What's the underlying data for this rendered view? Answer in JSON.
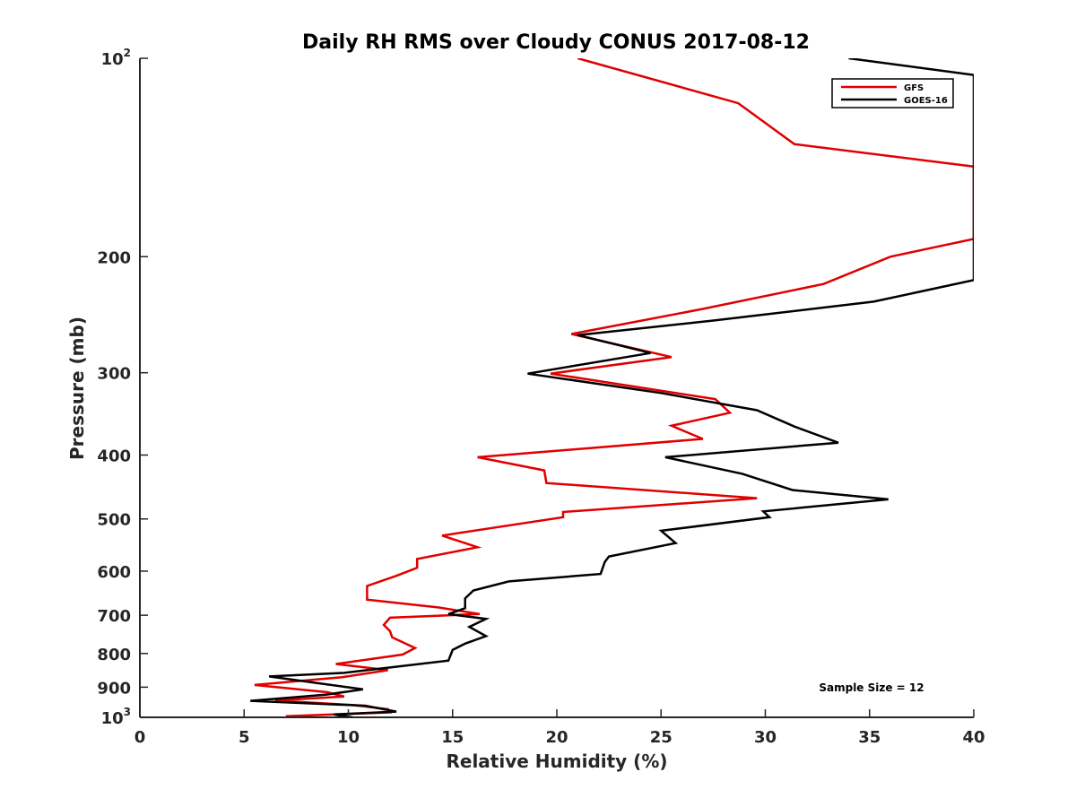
{
  "chart_data": {
    "type": "line",
    "title": "Daily RH RMS over Cloudy CONUS 2017-08-12",
    "xlabel": "Relative Humidity (%)",
    "ylabel": "Pressure (mb)",
    "xlim": [
      0,
      40
    ],
    "ylim": [
      100,
      1000
    ],
    "y_scale": "log",
    "y_reversed": true,
    "grid": false,
    "legend_position": "top-right",
    "x_ticks": [
      "0",
      "5",
      "10",
      "15",
      "20",
      "25",
      "30",
      "35",
      "40"
    ],
    "y_ticks": [
      {
        "value": 100,
        "base": "10",
        "exp": "2"
      },
      {
        "value": 200,
        "label": "200"
      },
      {
        "value": 300,
        "label": "300"
      },
      {
        "value": 400,
        "label": "400"
      },
      {
        "value": 500,
        "label": "500"
      },
      {
        "value": 600,
        "label": "600"
      },
      {
        "value": 700,
        "label": "700"
      },
      {
        "value": 800,
        "label": "800"
      },
      {
        "value": 900,
        "label": "900"
      },
      {
        "value": 1000,
        "base": "10",
        "exp": "3"
      }
    ],
    "annotation": "Sample Size = 12",
    "series": [
      {
        "name": "GFS",
        "color": "#e00000",
        "points": [
          [
            21.0,
            100
          ],
          [
            28.7,
            117
          ],
          [
            31.4,
            135
          ],
          [
            40.0,
            146
          ],
          [
            40.0,
            188
          ],
          [
            36.0,
            200
          ],
          [
            32.8,
            220
          ],
          [
            27.0,
            240
          ],
          [
            20.7,
            262
          ],
          [
            25.5,
            284
          ],
          [
            19.7,
            301
          ],
          [
            27.6,
            329
          ],
          [
            28.3,
            345
          ],
          [
            25.5,
            361
          ],
          [
            27.0,
            378
          ],
          [
            16.2,
            403
          ],
          [
            19.4,
            422
          ],
          [
            19.5,
            441
          ],
          [
            29.6,
            465
          ],
          [
            20.3,
            488
          ],
          [
            20.3,
            497
          ],
          [
            14.5,
            530
          ],
          [
            16.2,
            552
          ],
          [
            13.3,
            575
          ],
          [
            13.3,
            593
          ],
          [
            12.3,
            610
          ],
          [
            10.9,
            632
          ],
          [
            10.9,
            663
          ],
          [
            14.3,
            681
          ],
          [
            16.3,
            697
          ],
          [
            12.0,
            706
          ],
          [
            11.7,
            724
          ],
          [
            12.0,
            740
          ],
          [
            12.1,
            756
          ],
          [
            13.2,
            785
          ],
          [
            12.6,
            803
          ],
          [
            9.4,
            830
          ],
          [
            11.9,
            848
          ],
          [
            9.7,
            869
          ],
          [
            5.5,
            893
          ],
          [
            9.0,
            916
          ],
          [
            9.8,
            930
          ],
          [
            6.5,
            943
          ],
          [
            10.2,
            958
          ],
          [
            11.9,
            972
          ],
          [
            12.0,
            983
          ],
          [
            7.0,
            996
          ]
        ]
      },
      {
        "name": "GOES-16",
        "color": "#000000",
        "points": [
          [
            34.0,
            100
          ],
          [
            40.0,
            106
          ],
          [
            40.0,
            217
          ],
          [
            38.0,
            224
          ],
          [
            35.2,
            234
          ],
          [
            27.5,
            250
          ],
          [
            21.0,
            263
          ],
          [
            24.5,
            280
          ],
          [
            18.6,
            301
          ],
          [
            25.0,
            322
          ],
          [
            29.6,
            342
          ],
          [
            31.4,
            362
          ],
          [
            33.5,
            383
          ],
          [
            25.2,
            403
          ],
          [
            28.9,
            427
          ],
          [
            31.3,
            452
          ],
          [
            35.9,
            467
          ],
          [
            29.9,
            487
          ],
          [
            30.2,
            497
          ],
          [
            25.0,
            521
          ],
          [
            25.7,
            544
          ],
          [
            22.5,
            570
          ],
          [
            22.3,
            581
          ],
          [
            22.1,
            606
          ],
          [
            17.7,
            622
          ],
          [
            16.0,
            642
          ],
          [
            15.6,
            660
          ],
          [
            15.6,
            683
          ],
          [
            14.8,
            697
          ],
          [
            16.6,
            709
          ],
          [
            15.8,
            729
          ],
          [
            16.6,
            753
          ],
          [
            15.6,
            773
          ],
          [
            15.0,
            790
          ],
          [
            14.8,
            820
          ],
          [
            9.8,
            856
          ],
          [
            6.2,
            867
          ],
          [
            10.7,
            907
          ],
          [
            8.9,
            924
          ],
          [
            5.3,
            944
          ],
          [
            10.8,
            960
          ],
          [
            12.3,
            980
          ],
          [
            9.3,
            990
          ],
          [
            10.2,
            1000
          ]
        ]
      }
    ]
  }
}
